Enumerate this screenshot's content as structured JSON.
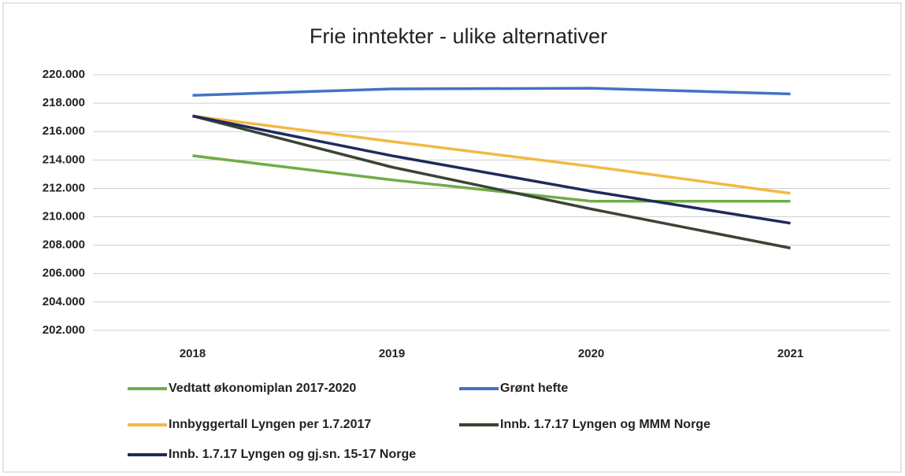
{
  "chart_data": {
    "type": "line",
    "title": "Frie inntekter - ulike alternativer",
    "categories": [
      "2018",
      "2019",
      "2020",
      "2021"
    ],
    "series": [
      {
        "name": "Vedtatt økonomiplan 2017-2020",
        "color": "#70ad47",
        "values": [
          214300,
          212600,
          211100,
          211100
        ]
      },
      {
        "name": "Grønt hefte",
        "color": "#4472c4",
        "values": [
          218550,
          219000,
          219050,
          218650
        ]
      },
      {
        "name": "Innbyggertall Lyngen per 1.7.2017",
        "color": "#f4b942",
        "values": [
          217100,
          215300,
          213550,
          211650
        ]
      },
      {
        "name": "Innb. 1.7.17 Lyngen og MMM Norge",
        "color": "#3b4434",
        "values": [
          217100,
          213500,
          210550,
          207800
        ]
      },
      {
        "name": "Innb. 1.7.17 Lyngen og gj.sn. 15-17 Norge",
        "color": "#1f2a5c",
        "values": [
          217100,
          214300,
          211800,
          209550
        ]
      }
    ],
    "ylim": [
      202000,
      220000
    ],
    "yticks": [
      {
        "value": 202000,
        "label": "202.000"
      },
      {
        "value": 204000,
        "label": "204.000"
      },
      {
        "value": 206000,
        "label": "206.000"
      },
      {
        "value": 208000,
        "label": "208.000"
      },
      {
        "value": 210000,
        "label": "210.000"
      },
      {
        "value": 212000,
        "label": "212.000"
      },
      {
        "value": 214000,
        "label": "214.000"
      },
      {
        "value": 216000,
        "label": "216.000"
      },
      {
        "value": 218000,
        "label": "218.000"
      },
      {
        "value": 220000,
        "label": "220.000"
      }
    ],
    "grid": true,
    "legend": "bottom"
  }
}
